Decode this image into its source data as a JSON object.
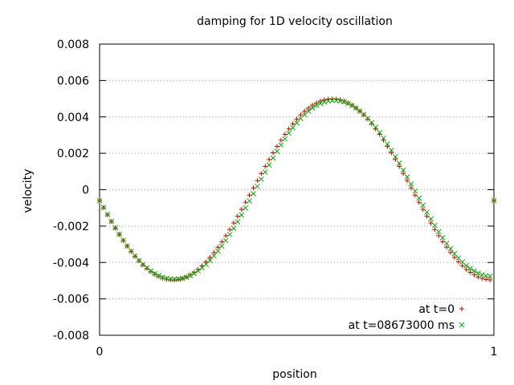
{
  "chart_data": {
    "type": "scatter",
    "title": "damping for 1D velocity oscillation",
    "xlabel": "position",
    "ylabel": "velocity",
    "xlim": [
      0,
      1
    ],
    "ylim": [
      -0.008,
      0.008
    ],
    "x_ticks": [
      {
        "value": 0,
        "label": "0"
      },
      {
        "value": 1,
        "label": "1"
      }
    ],
    "y_ticks": [
      {
        "value": 0.008,
        "label": "0.008"
      },
      {
        "value": 0.006,
        "label": "0.006"
      },
      {
        "value": 0.004,
        "label": "0.004"
      },
      {
        "value": 0.002,
        "label": "0.002"
      },
      {
        "value": 0,
        "label": "0"
      },
      {
        "value": -0.002,
        "label": "-0.002"
      },
      {
        "value": -0.004,
        "label": "-0.004"
      },
      {
        "value": -0.006,
        "label": "-0.006"
      },
      {
        "value": -0.008,
        "label": "-0.008"
      }
    ],
    "grid": "horizontal dotted",
    "legend_position": "bottom-right",
    "series": [
      {
        "name": "at t=0",
        "marker": "+",
        "color": "#cc0000",
        "x": [
          0.0,
          0.01,
          0.02,
          0.03,
          0.04,
          0.05,
          0.06,
          0.07,
          0.08,
          0.09,
          0.1,
          0.11,
          0.12,
          0.13,
          0.14,
          0.15,
          0.16,
          0.17,
          0.18,
          0.19,
          0.2,
          0.21,
          0.22,
          0.23,
          0.24,
          0.25,
          0.26,
          0.27,
          0.28,
          0.29,
          0.3,
          0.31,
          0.32,
          0.33,
          0.34,
          0.35,
          0.36,
          0.37,
          0.38,
          0.39,
          0.4,
          0.41,
          0.42,
          0.43,
          0.44,
          0.45,
          0.46,
          0.47,
          0.48,
          0.49,
          0.5,
          0.51,
          0.52,
          0.53,
          0.54,
          0.55,
          0.56,
          0.57,
          0.58,
          0.59,
          0.6,
          0.61,
          0.62,
          0.63,
          0.64,
          0.65,
          0.66,
          0.67,
          0.68,
          0.69,
          0.7,
          0.71,
          0.72,
          0.73,
          0.74,
          0.75,
          0.76,
          0.77,
          0.78,
          0.79,
          0.8,
          0.81,
          0.82,
          0.83,
          0.84,
          0.85,
          0.86,
          0.87,
          0.88,
          0.89,
          0.9,
          0.91,
          0.92,
          0.93,
          0.94,
          0.95,
          0.96,
          0.97,
          0.98,
          0.99,
          1.0
        ],
        "y": [
          -0.0006,
          -0.00099,
          -0.00138,
          -0.00175,
          -0.00211,
          -0.00246,
          -0.00279,
          -0.0031,
          -0.00339,
          -0.00366,
          -0.00391,
          -0.00413,
          -0.00433,
          -0.0045,
          -0.00465,
          -0.00477,
          -0.00486,
          -0.00492,
          -0.00495,
          -0.00496,
          -0.00493,
          -0.00488,
          -0.0048,
          -0.00468,
          -0.00454,
          -0.00438,
          -0.00418,
          -0.00396,
          -0.00372,
          -0.00345,
          -0.00316,
          -0.00286,
          -0.00253,
          -0.00219,
          -0.00183,
          -0.00146,
          -0.00108,
          -0.00069,
          -0.0003,
          0.0001,
          0.0005,
          0.00089,
          0.00128,
          0.00166,
          0.00203,
          0.00238,
          0.00272,
          0.00304,
          0.00334,
          0.00362,
          0.00388,
          0.00411,
          0.00431,
          0.00449,
          0.00465,
          0.00477,
          0.00487,
          0.00494,
          0.00498,
          0.00499,
          0.00498,
          0.00494,
          0.00487,
          0.00477,
          0.00465,
          0.00449,
          0.00431,
          0.00411,
          0.00388,
          0.00362,
          0.00334,
          0.00304,
          0.00272,
          0.00238,
          0.00203,
          0.00166,
          0.00128,
          0.00089,
          0.0005,
          0.0001,
          -0.0003,
          -0.00069,
          -0.00108,
          -0.00146,
          -0.00183,
          -0.00219,
          -0.00253,
          -0.00286,
          -0.00316,
          -0.00345,
          -0.00372,
          -0.00396,
          -0.00418,
          -0.00438,
          -0.00454,
          -0.00468,
          -0.0048,
          -0.00488,
          -0.00493,
          -0.00496,
          -0.0006
        ]
      },
      {
        "name": "at t=08673000 ms",
        "marker": "x",
        "color": "#00aa00",
        "x": [
          0.0,
          0.01,
          0.02,
          0.03,
          0.04,
          0.05,
          0.06,
          0.07,
          0.08,
          0.09,
          0.1,
          0.11,
          0.12,
          0.13,
          0.14,
          0.15,
          0.16,
          0.17,
          0.18,
          0.19,
          0.2,
          0.21,
          0.22,
          0.23,
          0.24,
          0.25,
          0.26,
          0.27,
          0.28,
          0.29,
          0.3,
          0.31,
          0.32,
          0.33,
          0.34,
          0.35,
          0.36,
          0.37,
          0.38,
          0.39,
          0.4,
          0.41,
          0.42,
          0.43,
          0.44,
          0.45,
          0.46,
          0.47,
          0.48,
          0.49,
          0.5,
          0.51,
          0.52,
          0.53,
          0.54,
          0.55,
          0.56,
          0.57,
          0.58,
          0.59,
          0.6,
          0.61,
          0.62,
          0.63,
          0.64,
          0.65,
          0.66,
          0.67,
          0.68,
          0.69,
          0.7,
          0.71,
          0.72,
          0.73,
          0.74,
          0.75,
          0.76,
          0.77,
          0.78,
          0.79,
          0.8,
          0.81,
          0.82,
          0.83,
          0.84,
          0.85,
          0.86,
          0.87,
          0.88,
          0.89,
          0.9,
          0.91,
          0.92,
          0.93,
          0.94,
          0.95,
          0.96,
          0.97,
          0.98,
          0.99,
          1.0
        ],
        "y": [
          -0.0006,
          -0.00097,
          -0.00136,
          -0.00174,
          -0.0021,
          -0.00245,
          -0.00278,
          -0.00309,
          -0.00338,
          -0.00365,
          -0.00389,
          -0.00411,
          -0.0043,
          -0.00447,
          -0.00461,
          -0.00472,
          -0.00481,
          -0.00487,
          -0.00491,
          -0.00492,
          -0.00491,
          -0.00487,
          -0.00481,
          -0.00472,
          -0.0046,
          -0.00446,
          -0.0043,
          -0.0041,
          -0.00389,
          -0.00364,
          -0.00338,
          -0.0031,
          -0.00279,
          -0.00246,
          -0.00212,
          -0.00176,
          -0.00139,
          -0.00101,
          -0.00062,
          -0.00022,
          0.00018,
          0.00058,
          0.00097,
          0.00136,
          0.00174,
          0.00211,
          0.00246,
          0.00279,
          0.00311,
          0.0034,
          0.00367,
          0.00391,
          0.00413,
          0.00432,
          0.00449,
          0.00463,
          0.00474,
          0.00482,
          0.00488,
          0.0049,
          0.0049,
          0.00487,
          0.00482,
          0.00473,
          0.00462,
          0.00449,
          0.00432,
          0.00413,
          0.00392,
          0.00368,
          0.00342,
          0.00314,
          0.00283,
          0.00251,
          0.00218,
          0.00182,
          0.00146,
          0.00108,
          0.0007,
          0.00031,
          -8e-05,
          -0.00047,
          -0.00086,
          -0.00124,
          -0.00161,
          -0.00197,
          -0.00231,
          -0.00264,
          -0.00295,
          -0.00324,
          -0.00351,
          -0.00375,
          -0.00397,
          -0.00417,
          -0.00433,
          -0.00447,
          -0.00459,
          -0.00467,
          -0.00473,
          -0.00476,
          -0.0006
        ]
      }
    ]
  }
}
